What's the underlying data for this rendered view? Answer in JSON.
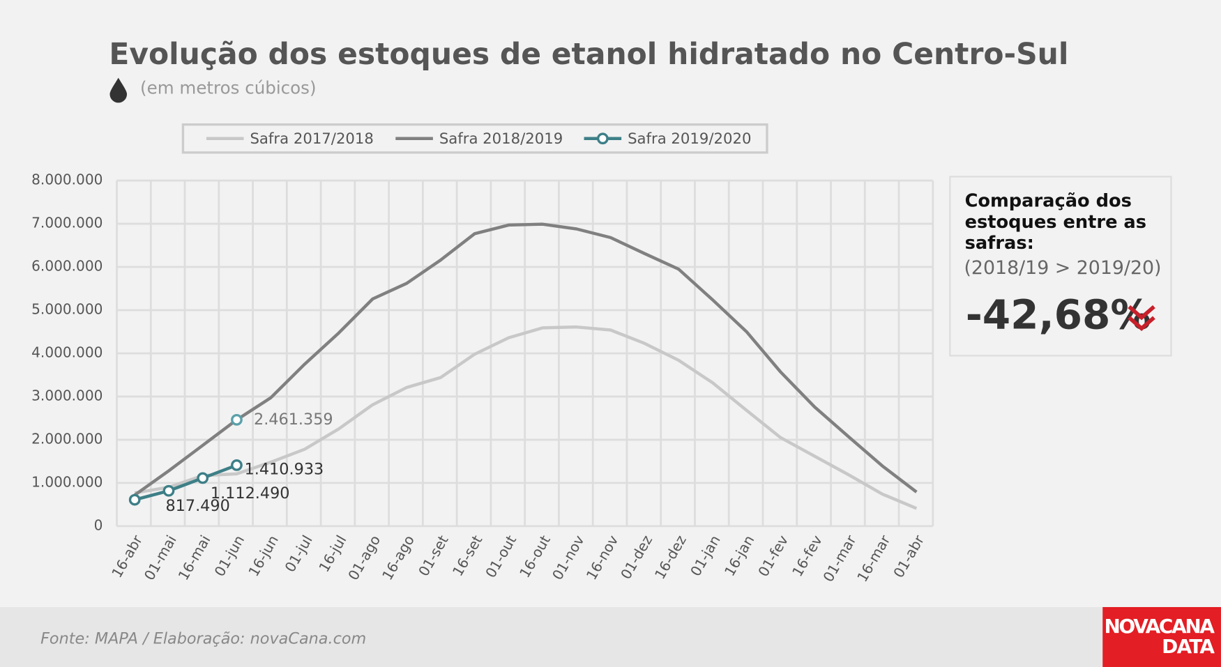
{
  "chart_data": {
    "type": "line",
    "title": "Evolução dos estoques de etanol hidratado no Centro-Sul",
    "subtitle": "(em metros cúbicos)",
    "categories": [
      "16-abr",
      "01-mai",
      "16-mai",
      "01-jun",
      "16-jun",
      "01-jul",
      "16-jul",
      "01-ago",
      "16-ago",
      "01-set",
      "16-set",
      "01-out",
      "16-out",
      "01-nov",
      "16-nov",
      "01-dez",
      "16-dez",
      "01-jan",
      "16-jan",
      "01-fev",
      "16-fev",
      "01-mar",
      "16-mar",
      "01-abr"
    ],
    "series": [
      {
        "name": "Safra 2017/2018",
        "color": "#c8c8c8",
        "values": [
          770000,
          900000,
          1170000,
          1210000,
          1480000,
          1780000,
          2250000,
          2810000,
          3210000,
          3440000,
          3980000,
          4360000,
          4590000,
          4610000,
          4540000,
          4230000,
          3840000,
          3320000,
          2680000,
          2050000,
          1620000,
          1190000,
          740000,
          410000
        ]
      },
      {
        "name": "Safra 2018/2019",
        "color": "#808080",
        "values": [
          720000,
          1280000,
          1870000,
          2461359,
          2970000,
          3750000,
          4470000,
          5260000,
          5620000,
          6160000,
          6770000,
          6970000,
          6990000,
          6880000,
          6680000,
          6310000,
          5950000,
          5240000,
          4500000,
          3570000,
          2760000,
          2070000,
          1390000,
          790000
        ]
      },
      {
        "name": "Safra 2019/2020",
        "color": "#3d7f87",
        "markers": true,
        "values": [
          610000,
          817490,
          1112490,
          1410933,
          null,
          null,
          null,
          null,
          null,
          null,
          null,
          null,
          null,
          null,
          null,
          null,
          null,
          null,
          null,
          null,
          null,
          null,
          null,
          null
        ],
        "value_labels": [
          null,
          "817.490",
          "1.112.490",
          "1.410.933",
          null,
          null,
          null,
          null,
          null,
          null,
          null,
          null,
          null,
          null,
          null,
          null,
          null,
          null,
          null,
          null,
          null,
          null,
          null,
          null
        ]
      }
    ],
    "annotations": [
      {
        "category": "01-jun",
        "value": 2461359,
        "label": "2.461.359"
      }
    ],
    "ylim": [
      0,
      8000000
    ],
    "yticks": [
      0,
      {
        "value": 1000000,
        "label": "1.000.000"
      },
      {
        "value": 2000000,
        "label": "2.000.000"
      },
      {
        "value": 3000000,
        "label": "3.000.000"
      },
      {
        "value": 4000000,
        "label": "4.000.000"
      },
      {
        "value": 5000000,
        "label": "5.000.000"
      },
      {
        "value": 6000000,
        "label": "6.000.000"
      },
      {
        "value": 7000000,
        "label": "7.000.000"
      },
      {
        "value": 8000000,
        "label": "8.000.000"
      }
    ],
    "grid": true,
    "legend": "top"
  },
  "panel": {
    "title_lines": [
      "Comparação dos",
      "estoques entre as",
      "safras:"
    ],
    "subtitle": "(2018/19 > 2019/20)",
    "value": "-42,68%"
  },
  "footer": {
    "source": "Fonte: MAPA  / Elaboração: novaCana.com",
    "logo_lines": [
      "NOVACANA",
      "DATA"
    ]
  }
}
